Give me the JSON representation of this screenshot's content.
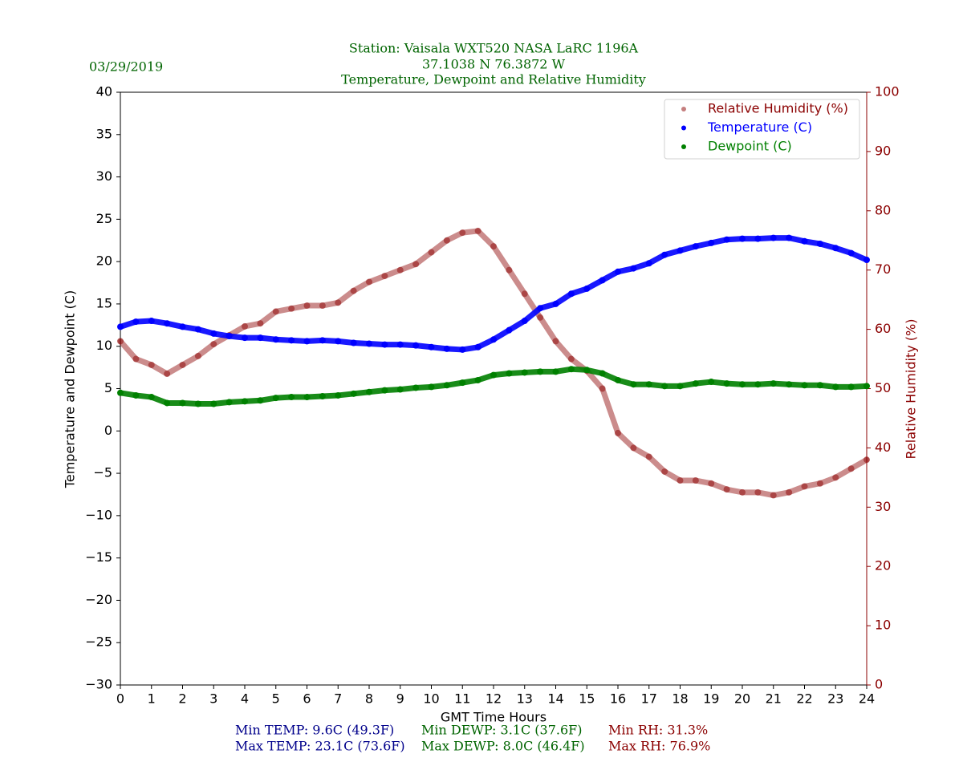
{
  "chart_data": {
    "type": "scatter",
    "title": [
      "Station:  Vaisala WXT520  NASA LaRC 1196A",
      "37.1038 N 76.3872 W",
      "Temperature, Dewpoint and Relative Humidity"
    ],
    "date": "03/29/2019",
    "xlabel": "GMT Time Hours",
    "ylabel": "Temperature and Dewpoint (C)",
    "y2label": "Relative Humidity (%)",
    "x": [
      0,
      0.5,
      1,
      1.5,
      2,
      2.5,
      3,
      3.5,
      4,
      4.5,
      5,
      5.5,
      6,
      6.5,
      7,
      7.5,
      8,
      8.5,
      9,
      9.5,
      10,
      10.5,
      11,
      11.5,
      12,
      12.5,
      13,
      13.5,
      14,
      14.5,
      15,
      15.5,
      16,
      16.5,
      17,
      17.5,
      18,
      18.5,
      19,
      19.5,
      20,
      20.5,
      21,
      21.5,
      22,
      22.5,
      23,
      23.5,
      24
    ],
    "xlim": [
      0,
      24
    ],
    "xticks": [
      0,
      1,
      2,
      3,
      4,
      5,
      6,
      7,
      8,
      9,
      10,
      11,
      12,
      13,
      14,
      15,
      16,
      17,
      18,
      19,
      20,
      21,
      22,
      23,
      24
    ],
    "ylim": [
      -30,
      40
    ],
    "yticks": [
      {
        "value": -30,
        "label": "−30"
      },
      {
        "value": -25,
        "label": "−25"
      },
      {
        "value": -20,
        "label": "−20"
      },
      {
        "value": -15,
        "label": "−15"
      },
      {
        "value": -10,
        "label": "−10"
      },
      {
        "value": -5,
        "label": "−5"
      },
      0,
      5,
      10,
      15,
      20,
      25,
      30,
      35,
      40
    ],
    "y2lim": [
      0,
      100
    ],
    "y2ticks": [
      0,
      10,
      20,
      30,
      40,
      50,
      60,
      70,
      80,
      90,
      100
    ],
    "legend": "upper right",
    "series": [
      {
        "name": "Relative Humidity (%)",
        "color": "#8b0000",
        "axis": "y2",
        "values": [
          58,
          55,
          54,
          52.5,
          54,
          55.5,
          57.5,
          59,
          60.5,
          61,
          63,
          63.5,
          64,
          64,
          64.5,
          66.5,
          68,
          69,
          70,
          71,
          73,
          75,
          76.3,
          76.6,
          74,
          70,
          66,
          62,
          58,
          55,
          53,
          50,
          42.5,
          40,
          38.5,
          36,
          34.5,
          34.5,
          34,
          33,
          32.5,
          32.5,
          32,
          32.5,
          33.5,
          34,
          35,
          36.5,
          38
        ]
      },
      {
        "name": "Temperature (C)",
        "color": "#0000ff",
        "values": [
          12.3,
          12.9,
          13.0,
          12.7,
          12.3,
          12.0,
          11.5,
          11.2,
          11.0,
          11.0,
          10.8,
          10.7,
          10.6,
          10.7,
          10.6,
          10.4,
          10.3,
          10.2,
          10.2,
          10.1,
          9.9,
          9.7,
          9.6,
          9.9,
          10.8,
          11.9,
          13.0,
          14.5,
          15.0,
          16.2,
          16.8,
          17.8,
          18.8,
          19.2,
          19.8,
          20.8,
          21.3,
          21.8,
          22.2,
          22.6,
          22.7,
          22.7,
          22.8,
          22.8,
          22.4,
          22.1,
          21.6,
          21.0,
          20.2
        ]
      },
      {
        "name": "Dewpoint (C)",
        "color": "#008000",
        "values": [
          4.5,
          4.2,
          4.0,
          3.3,
          3.3,
          3.2,
          3.2,
          3.4,
          3.5,
          3.6,
          3.9,
          4.0,
          4.0,
          4.1,
          4.2,
          4.4,
          4.6,
          4.8,
          4.9,
          5.1,
          5.2,
          5.4,
          5.7,
          6.0,
          6.6,
          6.8,
          6.9,
          7.0,
          7.0,
          7.3,
          7.2,
          6.8,
          6.0,
          5.5,
          5.5,
          5.3,
          5.3,
          5.6,
          5.8,
          5.6,
          5.5,
          5.5,
          5.6,
          5.5,
          5.4,
          5.4,
          5.2,
          5.2,
          5.3
        ]
      }
    ],
    "stats": [
      {
        "color": "#00008b",
        "lines": [
          "Min TEMP: 9.6C (49.3F)",
          "Max TEMP: 23.1C (73.6F)"
        ]
      },
      {
        "color": "#006400",
        "lines": [
          "Min DEWP: 3.1C (37.6F)",
          "Max DEWP: 8.0C (46.4F)"
        ]
      },
      {
        "color": "#8b0000",
        "lines": [
          "Min RH: 31.3%",
          "Max RH: 76.9%"
        ]
      }
    ]
  }
}
